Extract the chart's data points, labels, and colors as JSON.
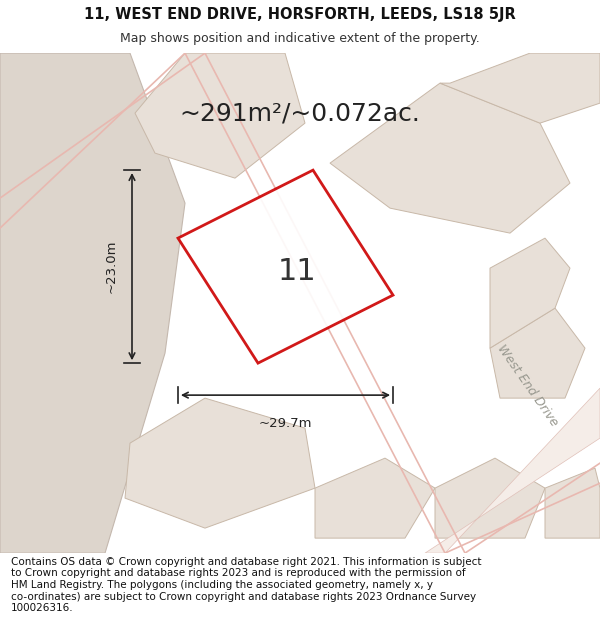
{
  "title_line1": "11, WEST END DRIVE, HORSFORTH, LEEDS, LS18 5JR",
  "title_line2": "Map shows position and indicative extent of the property.",
  "area_text": "~291m²/~0.072ac.",
  "label_number": "11",
  "dim_width": "~29.7m",
  "dim_height": "~23.0m",
  "street_label": "West End Drive",
  "footer_lines": "Contains OS data © Crown copyright and database right 2021. This information is subject\nto Crown copyright and database rights 2023 and is reproduced with the permission of\nHM Land Registry. The polygons (including the associated geometry, namely x, y\nco-ordinates) are subject to Crown copyright and database rights 2023 Ordnance Survey\n100026316.",
  "header_bg": "#ffffff",
  "footer_bg": "#ffffff",
  "map_bg": "#f0ebe4",
  "plot_outline_color": "#cc0000",
  "left_area_fill": "#ddd5cc",
  "left_area_edge": "#c4b8ae",
  "neighbour_fill": "#e8e0d8",
  "neighbour_edge": "#c8b8a8",
  "road_line_color": "#e8b8b0",
  "street_label_color": "#999990",
  "title_fontsize": 10.5,
  "subtitle_fontsize": 9,
  "area_fontsize": 18,
  "number_fontsize": 22,
  "dim_fontsize": 9.5,
  "footer_fontsize": 7.5
}
